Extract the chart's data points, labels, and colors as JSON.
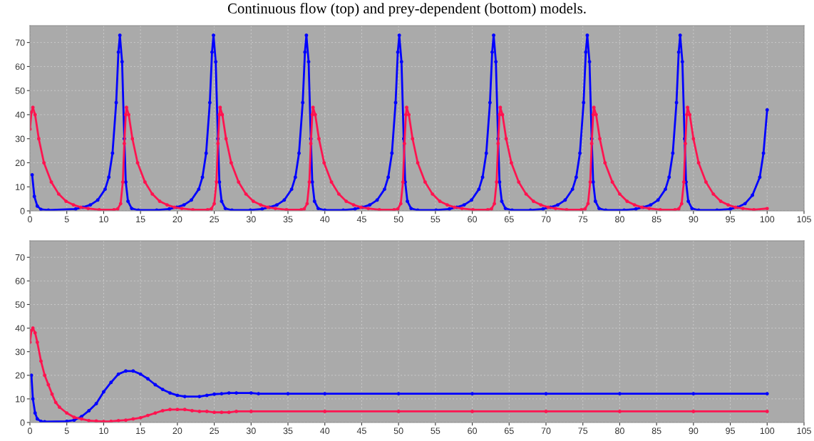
{
  "chart_data": [
    {
      "type": "line",
      "title": "Continuous flow (top) and prey-dependent (bottom) models.",
      "xlim": [
        0,
        105
      ],
      "ylim": [
        0,
        77
      ],
      "xticks": [
        0,
        5,
        10,
        15,
        20,
        25,
        30,
        35,
        40,
        45,
        50,
        55,
        60,
        65,
        70,
        75,
        80,
        85,
        90,
        95,
        100,
        105
      ],
      "yticks": [
        0,
        10,
        20,
        30,
        40,
        50,
        60,
        70
      ],
      "grid": true,
      "marker": "circle",
      "line_style": "solid",
      "series": [
        {
          "color": "#0000ff",
          "x": [
            0.3,
            0.6,
            1,
            1.5,
            2.5,
            6.2,
            7.2,
            8.2,
            9.2,
            10.2,
            10.7,
            11.2,
            11.7,
            12.0,
            12.2,
            12.5,
            12.8,
            13.0,
            13.3,
            13.8,
            14.7,
            17.2,
            18.9,
            19.9,
            20.9,
            21.9,
            22.9,
            23.4,
            23.9,
            24.4,
            24.7,
            24.9,
            25.2,
            25.5,
            25.7,
            26.0,
            26.5,
            27.4,
            29.9,
            31.5,
            32.5,
            33.5,
            34.5,
            35.5,
            36.0,
            36.5,
            37.0,
            37.3,
            37.5,
            37.8,
            38.1,
            38.3,
            38.6,
            39.1,
            40.0,
            42.5,
            44.1,
            45.1,
            46.1,
            47.1,
            48.1,
            48.6,
            49.1,
            49.6,
            49.9,
            50.1,
            50.4,
            50.7,
            50.9,
            51.2,
            51.7,
            52.6,
            55.1,
            56.9,
            57.9,
            58.9,
            59.9,
            60.9,
            61.4,
            61.9,
            62.4,
            62.7,
            62.9,
            63.2,
            63.5,
            63.7,
            64.0,
            64.5,
            65.4,
            67.9,
            69.6,
            70.6,
            71.6,
            72.6,
            73.6,
            74.1,
            74.6,
            75.1,
            75.4,
            75.6,
            75.9,
            76.2,
            76.4,
            76.7,
            77.2,
            78.1,
            80.6,
            82.2,
            83.2,
            84.2,
            85.2,
            86.2,
            86.7,
            87.2,
            87.7,
            88.0,
            88.2,
            88.5,
            88.8,
            89.0,
            89.3,
            89.8,
            90.7,
            93.2,
            95,
            96,
            97,
            98,
            99,
            99.5,
            100
          ],
          "values": [
            15,
            6,
            2,
            0.6,
            0.3,
            0.8,
            1.5,
            2.5,
            4.5,
            9,
            14,
            24,
            45,
            66,
            73,
            62,
            30,
            12,
            4,
            1,
            0.3,
            0.3,
            0.8,
            1.5,
            2.5,
            4.5,
            9,
            14,
            24,
            45,
            66,
            73,
            62,
            30,
            12,
            4,
            1,
            0.3,
            0.3,
            0.8,
            1.5,
            2.5,
            4.5,
            9,
            14,
            24,
            45,
            66,
            73,
            62,
            30,
            12,
            4,
            1,
            0.3,
            0.3,
            0.8,
            1.5,
            2.5,
            4.5,
            9,
            14,
            24,
            45,
            66,
            73,
            62,
            30,
            12,
            4,
            1,
            0.3,
            0.3,
            0.8,
            1.5,
            2.5,
            4.5,
            9,
            14,
            24,
            45,
            66,
            73,
            62,
            30,
            12,
            4,
            1,
            0.3,
            0.3,
            0.8,
            1.5,
            2.5,
            4.5,
            9,
            14,
            24,
            45,
            66,
            73,
            62,
            30,
            12,
            4,
            1,
            0.3,
            0.3,
            0.8,
            1.5,
            2.5,
            4.5,
            9,
            14,
            24,
            45,
            66,
            73,
            62,
            30,
            12,
            4,
            1,
            0.3,
            0.3,
            0.8,
            1.5,
            3,
            6.5,
            14,
            24,
            42
          ]
        },
        {
          "color": "#ff1450",
          "x": [
            0,
            0.2,
            0.4,
            0.7,
            1.2,
            1.9,
            2.9,
            3.9,
            4.9,
            5.9,
            6.9,
            7.9,
            9.4,
            11.4,
            11.9,
            12.3,
            12.6,
            12.8,
            13.0,
            13.1,
            13.4,
            13.9,
            14.6,
            15.6,
            16.6,
            17.6,
            18.6,
            19.6,
            20.6,
            22.1,
            24.1,
            24.6,
            25.0,
            25.3,
            25.5,
            25.7,
            25.8,
            26.1,
            26.6,
            27.3,
            28.3,
            29.3,
            30.3,
            31.3,
            32.3,
            33.3,
            34.8,
            36.8,
            37.2,
            37.6,
            37.9,
            38.1,
            38.3,
            38.4,
            38.7,
            39.2,
            39.9,
            40.9,
            41.9,
            42.9,
            43.9,
            44.9,
            45.9,
            47.4,
            49.4,
            49.9,
            50.3,
            50.6,
            50.8,
            51.0,
            51.1,
            51.4,
            51.9,
            52.6,
            53.6,
            54.6,
            55.6,
            56.6,
            57.6,
            58.6,
            60.1,
            62.1,
            62.6,
            63.0,
            63.3,
            63.5,
            63.7,
            63.8,
            64.1,
            64.6,
            65.3,
            66.3,
            67.3,
            68.3,
            69.3,
            70.3,
            71.3,
            72.8,
            74.8,
            75.3,
            75.7,
            76.0,
            76.2,
            76.4,
            76.5,
            76.8,
            77.3,
            78.0,
            79.0,
            80.0,
            81.0,
            82.0,
            83.0,
            84.0,
            85.5,
            87.5,
            88.0,
            88.4,
            88.7,
            88.9,
            89.1,
            89.2,
            89.5,
            90.0,
            90.7,
            91.7,
            92.7,
            93.7,
            94.7,
            95.7,
            96.7,
            98.2,
            100.0
          ],
          "values": [
            34,
            41,
            43,
            40,
            30,
            20,
            12,
            7,
            4,
            2.5,
            1.5,
            1,
            0.5,
            0.5,
            0.8,
            3,
            12,
            28,
            40,
            43,
            40,
            30,
            20,
            12,
            7,
            4,
            2.5,
            1.5,
            1,
            0.5,
            0.5,
            0.8,
            3,
            12,
            28,
            40,
            43,
            40,
            30,
            20,
            12,
            7,
            4,
            2.5,
            1.5,
            1,
            0.5,
            0.5,
            0.8,
            3,
            12,
            28,
            40,
            43,
            40,
            30,
            20,
            12,
            7,
            4,
            2.5,
            1.5,
            1,
            0.5,
            0.5,
            0.8,
            3,
            12,
            28,
            40,
            43,
            40,
            30,
            20,
            12,
            7,
            4,
            2.5,
            1.5,
            1,
            0.5,
            0.5,
            0.8,
            3,
            12,
            28,
            40,
            43,
            40,
            30,
            20,
            12,
            7,
            4,
            2.5,
            1.5,
            1,
            0.5,
            0.5,
            0.8,
            3,
            12,
            28,
            40,
            43,
            40,
            30,
            20,
            12,
            7,
            4,
            2.5,
            1.5,
            1,
            0.5,
            0.5,
            0.8,
            3,
            12,
            28,
            40,
            43,
            40,
            30,
            20,
            12,
            7,
            4,
            2.5,
            1.5,
            1,
            0.5,
            1
          ]
        }
      ]
    },
    {
      "type": "line",
      "xlim": [
        0,
        105
      ],
      "ylim": [
        0,
        77
      ],
      "xticks": [
        0,
        5,
        10,
        15,
        20,
        25,
        30,
        35,
        40,
        45,
        50,
        55,
        60,
        65,
        70,
        75,
        80,
        85,
        90,
        95,
        100,
        105
      ],
      "yticks": [
        0,
        10,
        20,
        30,
        40,
        50,
        60,
        70
      ],
      "grid": true,
      "marker": "circle",
      "line_style": "solid",
      "series": [
        {
          "color": "#0000ff",
          "x": [
            0.2,
            0.4,
            0.7,
            1,
            1.5,
            2,
            5,
            6,
            7,
            8,
            9,
            10,
            11,
            12,
            13,
            14,
            15,
            16,
            17,
            18,
            19,
            20,
            21,
            23,
            24,
            25,
            26,
            27,
            28,
            30,
            31,
            35,
            40,
            50,
            60,
            70,
            80,
            90,
            100
          ],
          "values": [
            20,
            10,
            4,
            1.5,
            0.5,
            0.3,
            0.5,
            1,
            2.5,
            5,
            8,
            13,
            17,
            20.5,
            21.8,
            21.8,
            20.5,
            18.5,
            16,
            14,
            12.5,
            11.5,
            11,
            11,
            11.5,
            12,
            12.2,
            12.5,
            12.5,
            12.5,
            12.2,
            12.2,
            12.2,
            12.2,
            12.2,
            12.2,
            12.2,
            12.2,
            12.2
          ]
        },
        {
          "color": "#ff1450",
          "x": [
            0,
            0.2,
            0.4,
            0.7,
            1,
            1.5,
            2,
            2.5,
            3,
            3.5,
            4,
            5,
            6,
            7,
            8,
            9,
            10,
            11,
            12,
            13,
            14,
            15,
            16,
            17,
            18,
            19,
            20,
            21,
            22,
            23,
            24,
            25,
            26,
            27,
            28,
            30,
            40,
            50,
            60,
            70,
            80,
            90,
            100
          ],
          "values": [
            34,
            39,
            40,
            38,
            34,
            26,
            20,
            16,
            12,
            8.5,
            6.5,
            4,
            2.2,
            1.5,
            0.8,
            0.6,
            0.4,
            0.5,
            0.8,
            1,
            1.5,
            2,
            3,
            4,
            5,
            5.5,
            5.5,
            5.5,
            5,
            4.7,
            4.7,
            4.3,
            4.3,
            4.3,
            4.7,
            4.7,
            4.7,
            4.7,
            4.7,
            4.7,
            4.7,
            4.7,
            4.7
          ]
        }
      ]
    }
  ]
}
